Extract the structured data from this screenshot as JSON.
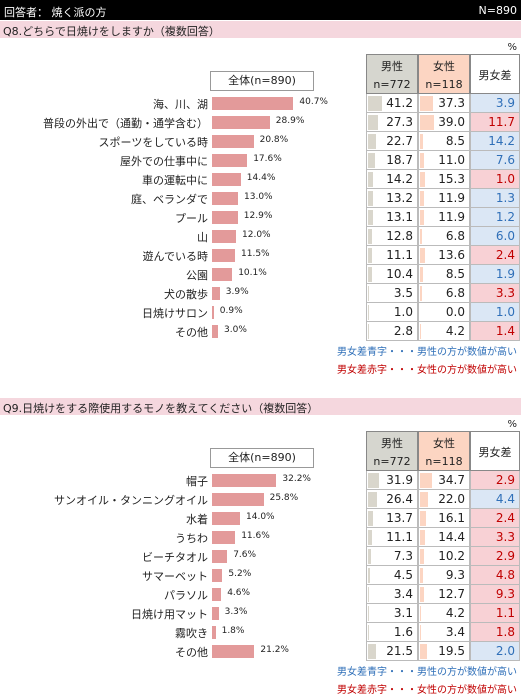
{
  "header": {
    "left": "回答者： 焼く派の方",
    "right": "N=890"
  },
  "chart_data": [
    {
      "type": "bar",
      "title": "Q8.どちらで日焼けをしますか（複数回答）",
      "percent_label": "%",
      "overall_label": "全体(n=890)",
      "columns": {
        "male": "男性",
        "male_n": "n=772",
        "female": "女性",
        "female_n": "n=118",
        "diff": "男女差"
      },
      "categories": [
        "海、川、湖",
        "普段の外出で（通勤・通学含む）",
        "スポーツをしている時",
        "屋外での仕事中に",
        "車の運転中に",
        "庭、ベランダで",
        "プール",
        "山",
        "遊んでいる時",
        "公園",
        "犬の散歩",
        "日焼けサロン",
        "その他"
      ],
      "overall": [
        "40.7%",
        "28.9%",
        "20.8%",
        "17.6%",
        "14.4%",
        "13.0%",
        "12.9%",
        "12.0%",
        "11.5%",
        "10.1%",
        "3.9%",
        "0.9%",
        "3.0%"
      ],
      "overall_values": [
        40.7,
        28.9,
        20.8,
        17.6,
        14.4,
        13.0,
        12.9,
        12.0,
        11.5,
        10.1,
        3.9,
        0.9,
        3.0
      ],
      "male": [
        "41.2",
        "27.3",
        "22.7",
        "18.7",
        "14.2",
        "13.2",
        "13.1",
        "12.8",
        "11.1",
        "10.4",
        "3.5",
        "1.0",
        "2.8"
      ],
      "female": [
        "37.3",
        "39.0",
        "8.5",
        "11.0",
        "15.3",
        "11.9",
        "11.9",
        "6.8",
        "13.6",
        "8.5",
        "6.8",
        "0.0",
        "4.2"
      ],
      "diff": [
        "3.9",
        "11.7",
        "14.2",
        "7.6",
        "1.0",
        "1.3",
        "1.2",
        "6.0",
        "2.4",
        "1.9",
        "3.3",
        "1.0",
        "1.4"
      ],
      "diff_color": [
        "blue",
        "red",
        "blue",
        "blue",
        "red",
        "blue",
        "blue",
        "blue",
        "red",
        "blue",
        "red",
        "blue",
        "red"
      ],
      "notes": {
        "blue": "男女差青字・・・男性の方が数値が高い",
        "red": "男女差赤字・・・女性の方が数値が高い"
      }
    },
    {
      "type": "bar",
      "title": "Q9.日焼けをする際使用するモノを教えてください（複数回答）",
      "percent_label": "%",
      "overall_label": "全体(n=890)",
      "columns": {
        "male": "男性",
        "male_n": "n=772",
        "female": "女性",
        "female_n": "n=118",
        "diff": "男女差"
      },
      "categories": [
        "帽子",
        "サンオイル・タンニングオイル",
        "水着",
        "うちわ",
        "ビーチタオル",
        "サマーベット",
        "パラソル",
        "日焼け用マット",
        "霧吹き",
        "その他"
      ],
      "overall": [
        "32.2%",
        "25.8%",
        "14.0%",
        "11.6%",
        "7.6%",
        "5.2%",
        "4.6%",
        "3.3%",
        "1.8%",
        "21.2%"
      ],
      "overall_values": [
        32.2,
        25.8,
        14.0,
        11.6,
        7.6,
        5.2,
        4.6,
        3.3,
        1.8,
        21.2
      ],
      "male": [
        "31.9",
        "26.4",
        "13.7",
        "11.1",
        "7.3",
        "4.5",
        "3.4",
        "3.1",
        "1.6",
        "21.5"
      ],
      "female": [
        "34.7",
        "22.0",
        "16.1",
        "14.4",
        "10.2",
        "9.3",
        "12.7",
        "4.2",
        "3.4",
        "19.5"
      ],
      "diff": [
        "2.9",
        "4.4",
        "2.4",
        "3.3",
        "2.9",
        "4.8",
        "9.3",
        "1.1",
        "1.8",
        "2.0"
      ],
      "diff_color": [
        "red",
        "blue",
        "red",
        "red",
        "red",
        "red",
        "red",
        "red",
        "red",
        "blue"
      ],
      "notes": {
        "blue": "男女差青字・・・男性の方が数値が高い",
        "red": "男女差赤字・・・女性の方が数値が高い"
      }
    }
  ]
}
